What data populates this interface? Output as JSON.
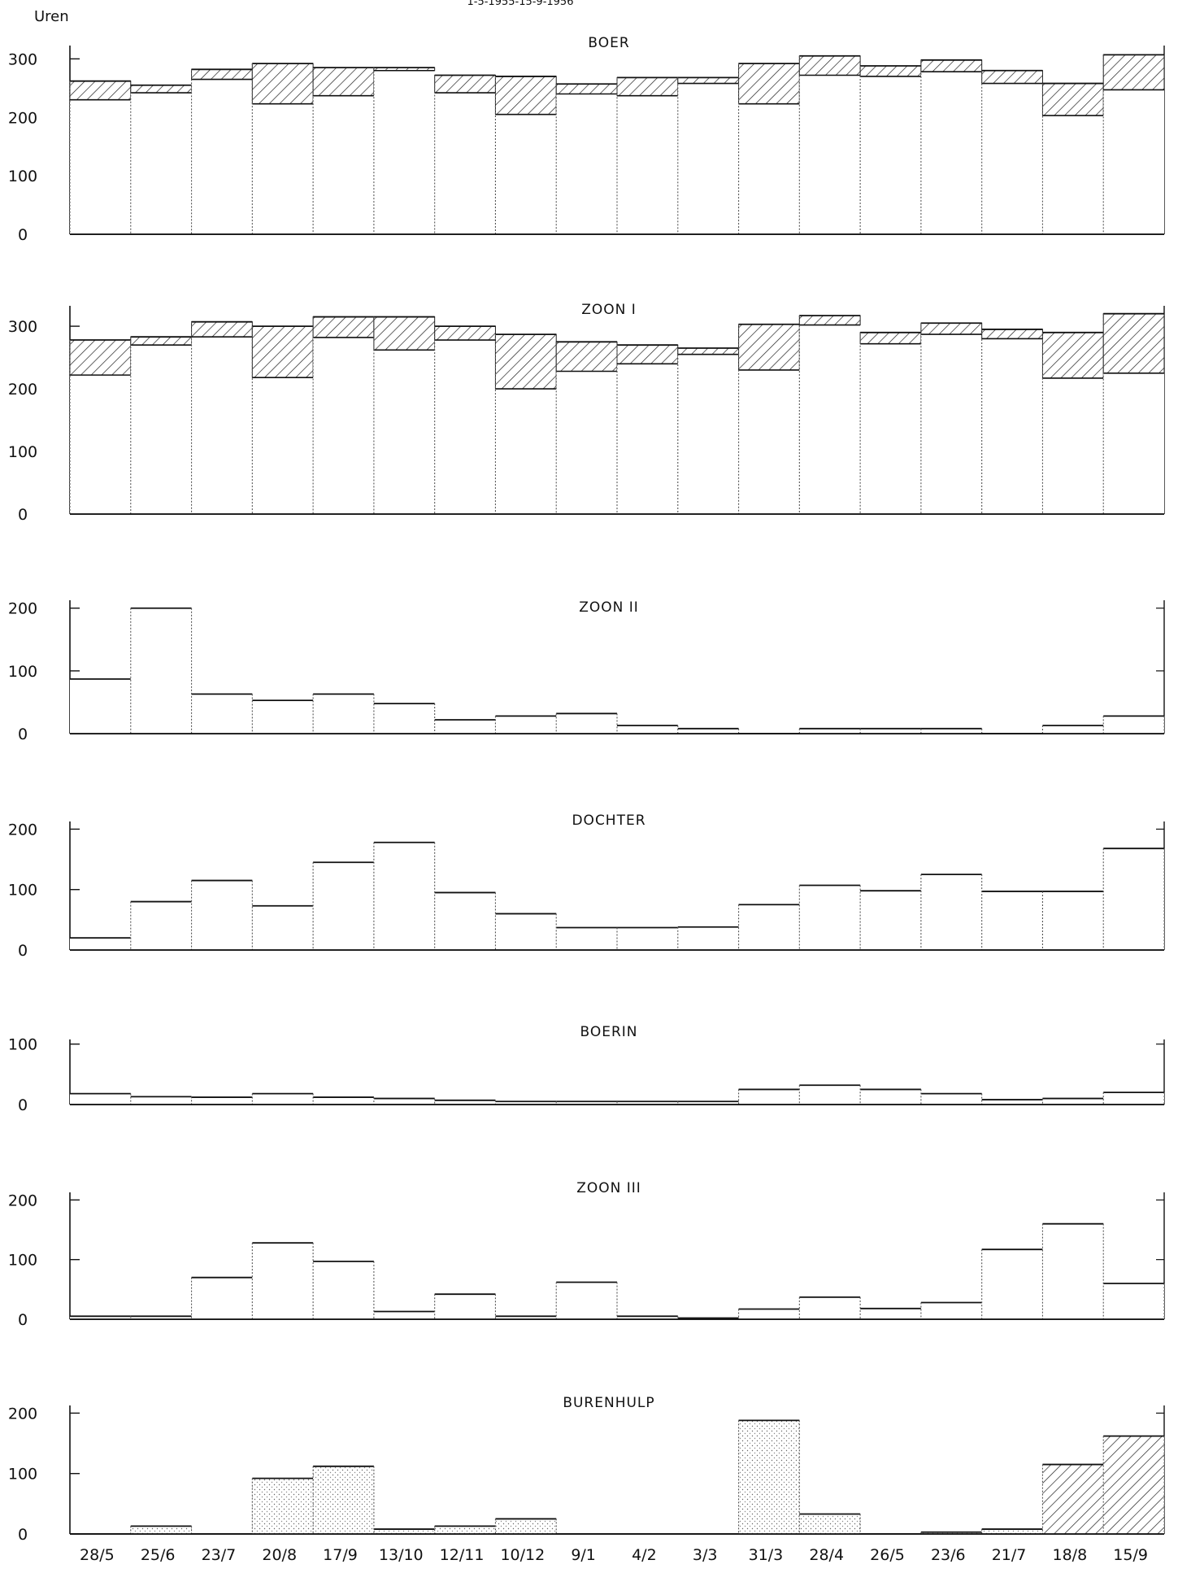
{
  "header": "1-5-1955-15-9-1956",
  "y_unit": "Uren",
  "dates": [
    "28/5",
    "25/6",
    "23/7",
    "20/8",
    "17/9",
    "13/10",
    "12/11",
    "10/12",
    "9/1",
    "4/2",
    "3/3",
    "31/3",
    "28/4",
    "26/5",
    "23/6",
    "21/7",
    "18/8",
    "15/9"
  ],
  "chart_data": [
    {
      "type": "bar",
      "title": "BOER",
      "ylim": [
        0,
        320
      ],
      "yticks": [
        0,
        100,
        200,
        300
      ],
      "base": [
        230,
        242,
        265,
        223,
        237,
        280,
        242,
        205,
        240,
        237,
        258,
        223,
        272,
        270,
        278,
        258,
        203,
        247
      ],
      "total": [
        262,
        255,
        282,
        292,
        285,
        285,
        272,
        270,
        257,
        268,
        268,
        292,
        305,
        288,
        298,
        280,
        258,
        307
      ]
    },
    {
      "type": "bar",
      "title": "ZOON I",
      "ylim": [
        0,
        330
      ],
      "yticks": [
        0,
        100,
        200,
        300
      ],
      "base": [
        222,
        270,
        283,
        218,
        282,
        262,
        278,
        200,
        228,
        240,
        255,
        230,
        302,
        272,
        287,
        280,
        217,
        225
      ],
      "total": [
        278,
        283,
        307,
        300,
        315,
        315,
        300,
        287,
        275,
        270,
        265,
        303,
        317,
        290,
        305,
        295,
        290,
        320
      ]
    },
    {
      "type": "bar",
      "title": "ZOON II",
      "ylim": [
        0,
        210
      ],
      "yticks": [
        0,
        100,
        200
      ],
      "values": [
        87,
        200,
        63,
        53,
        63,
        48,
        22,
        28,
        32,
        13,
        8,
        0,
        8,
        8,
        8,
        0,
        13,
        28
      ]
    },
    {
      "type": "bar",
      "title": "DOCHTER",
      "ylim": [
        0,
        210
      ],
      "yticks": [
        0,
        100,
        200
      ],
      "values": [
        20,
        80,
        115,
        73,
        145,
        178,
        95,
        60,
        37,
        37,
        38,
        75,
        107,
        98,
        125,
        97,
        97,
        168
      ]
    },
    {
      "type": "bar",
      "title": "BOERIN",
      "ylim": [
        0,
        105
      ],
      "yticks": [
        0,
        100
      ],
      "values": [
        18,
        13,
        12,
        18,
        12,
        10,
        7,
        5,
        5,
        5,
        5,
        25,
        32,
        25,
        18,
        8,
        10,
        20
      ]
    },
    {
      "type": "bar",
      "title": "ZOON III",
      "ylim": [
        0,
        210
      ],
      "yticks": [
        0,
        100,
        200
      ],
      "values": [
        5,
        5,
        70,
        128,
        97,
        13,
        42,
        5,
        62,
        5,
        2,
        17,
        37,
        18,
        28,
        117,
        160,
        60
      ]
    },
    {
      "type": "bar",
      "title": "BURENHULP",
      "ylim": [
        0,
        210
      ],
      "yticks": [
        0,
        100,
        200
      ],
      "values": [
        0,
        13,
        0,
        92,
        112,
        8,
        13,
        25,
        0,
        0,
        0,
        188,
        33,
        0,
        3,
        8,
        115,
        162
      ]
    }
  ]
}
